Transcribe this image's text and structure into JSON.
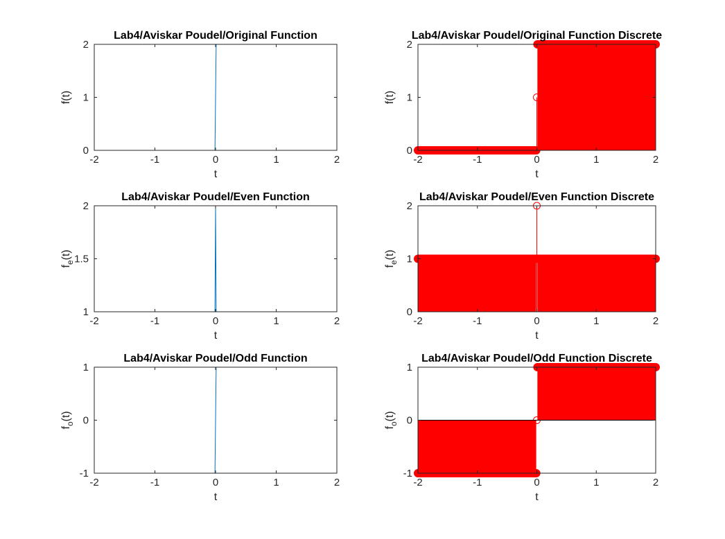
{
  "colors": {
    "continuous": "#0072BD",
    "discrete": "#FF0000",
    "axis": "#262626",
    "title": "#000000"
  },
  "chart_data": [
    {
      "type": "line",
      "title": "Lab4/Aviskar Poudel/Original Function",
      "xlabel": "t",
      "ylabel": "f(t)",
      "ylabel_sub": "",
      "xlim": [
        -2,
        2
      ],
      "ylim": [
        0,
        2
      ],
      "xticks": [
        -2,
        -1,
        0,
        1,
        2
      ],
      "yticks": [
        0,
        1,
        2
      ],
      "grid": false,
      "series": [
        {
          "x": [
            -2,
            -0.01,
            0,
            0.01,
            2
          ],
          "y": [
            0,
            0,
            1,
            2,
            2
          ]
        }
      ]
    },
    {
      "type": "stem",
      "title": "Lab4/Aviskar Poudel/Original Function Discrete",
      "xlabel": "t",
      "ylabel": "f(t)",
      "ylabel_sub": "",
      "xlim": [
        -2,
        2
      ],
      "ylim": [
        0,
        2
      ],
      "xticks": [
        -2,
        -1,
        0,
        1,
        2
      ],
      "yticks": [
        0,
        1,
        2
      ],
      "grid": false,
      "segments": [
        {
          "x_from": -2,
          "x_to": -0.01,
          "value": 0
        },
        {
          "x_from": 0,
          "x_to": 0,
          "value": 1
        },
        {
          "x_from": 0.01,
          "x_to": 2,
          "value": 2
        }
      ]
    },
    {
      "type": "line",
      "title": "Lab4/Aviskar Poudel/Even Function",
      "xlabel": "t",
      "ylabel": "f",
      "ylabel_sub": "e",
      "xlim": [
        -2,
        2
      ],
      "ylim": [
        1,
        2
      ],
      "xticks": [
        -2,
        -1,
        0,
        1,
        2
      ],
      "yticks": [
        1,
        1.5,
        2
      ],
      "grid": false,
      "series": [
        {
          "x": [
            -2,
            -0.01,
            0,
            0.01,
            2
          ],
          "y": [
            1,
            1,
            2,
            1,
            1
          ]
        }
      ]
    },
    {
      "type": "stem",
      "title": "Lab4/Aviskar Poudel/Even Function Discrete",
      "xlabel": "t",
      "ylabel": "f",
      "ylabel_sub": "e",
      "xlim": [
        -2,
        2
      ],
      "ylim": [
        0,
        2
      ],
      "xticks": [
        -2,
        -1,
        0,
        1,
        2
      ],
      "yticks": [
        0,
        1,
        2
      ],
      "grid": false,
      "segments": [
        {
          "x_from": -2,
          "x_to": -0.01,
          "value": 1
        },
        {
          "x_from": 0,
          "x_to": 0,
          "value": 2
        },
        {
          "x_from": 0.01,
          "x_to": 2,
          "value": 1
        }
      ]
    },
    {
      "type": "line",
      "title": "Lab4/Aviskar Poudel/Odd Function",
      "xlabel": "t",
      "ylabel": "f",
      "ylabel_sub": "o",
      "xlim": [
        -2,
        2
      ],
      "ylim": [
        -1,
        1
      ],
      "xticks": [
        -2,
        -1,
        0,
        1,
        2
      ],
      "yticks": [
        -1,
        0,
        1
      ],
      "grid": false,
      "series": [
        {
          "x": [
            -2,
            -0.01,
            0,
            0.01,
            2
          ],
          "y": [
            -1,
            -1,
            0,
            1,
            1
          ]
        }
      ]
    },
    {
      "type": "stem",
      "title": "Lab4/Aviskar Poudel/Odd Function Discrete",
      "xlabel": "t",
      "ylabel": "f",
      "ylabel_sub": "o",
      "xlim": [
        -2,
        2
      ],
      "ylim": [
        -1,
        1
      ],
      "xticks": [
        -2,
        -1,
        0,
        1,
        2
      ],
      "yticks": [
        -1,
        0,
        1
      ],
      "grid": false,
      "segments": [
        {
          "x_from": -2,
          "x_to": -0.01,
          "value": -1
        },
        {
          "x_from": 0,
          "x_to": 0,
          "value": 0
        },
        {
          "x_from": 0.01,
          "x_to": 2,
          "value": 1
        }
      ]
    }
  ]
}
